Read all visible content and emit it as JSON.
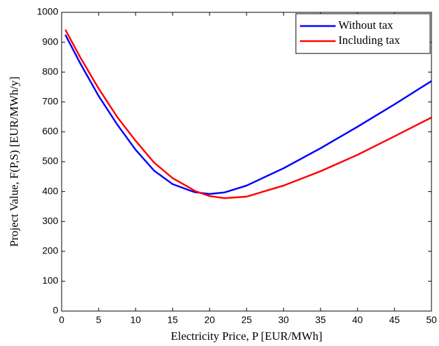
{
  "chart_data": {
    "type": "line",
    "xlabel": "Electricity Price, P [EUR/MWh]",
    "ylabel": "Project Value, F(P,S) [EUR/MWh/y]",
    "x": [
      0.5,
      2.5,
      5,
      7.5,
      10,
      12.5,
      15,
      17.5,
      18,
      20,
      22,
      25,
      30,
      35,
      40,
      45,
      50
    ],
    "series": [
      {
        "name": "Without tax",
        "color": "#0000ff",
        "values": [
          925,
          830,
          720,
          625,
          540,
          470,
          425,
          402,
          398,
          392,
          397,
          420,
          478,
          545,
          617,
          692,
          770
        ]
      },
      {
        "name": "Including tax",
        "color": "#ff0000",
        "values": [
          942,
          850,
          745,
          650,
          570,
          497,
          445,
          410,
          402,
          385,
          378,
          383,
          420,
          468,
          523,
          585,
          648
        ]
      }
    ],
    "xlim": [
      0,
      50
    ],
    "xticks": [
      0,
      5,
      10,
      15,
      20,
      25,
      30,
      35,
      40,
      45,
      50
    ],
    "ylim": [
      0,
      1000
    ],
    "yticks": [
      0,
      100,
      200,
      300,
      400,
      500,
      600,
      700,
      800,
      900,
      1000
    ],
    "legend": "upper right"
  }
}
